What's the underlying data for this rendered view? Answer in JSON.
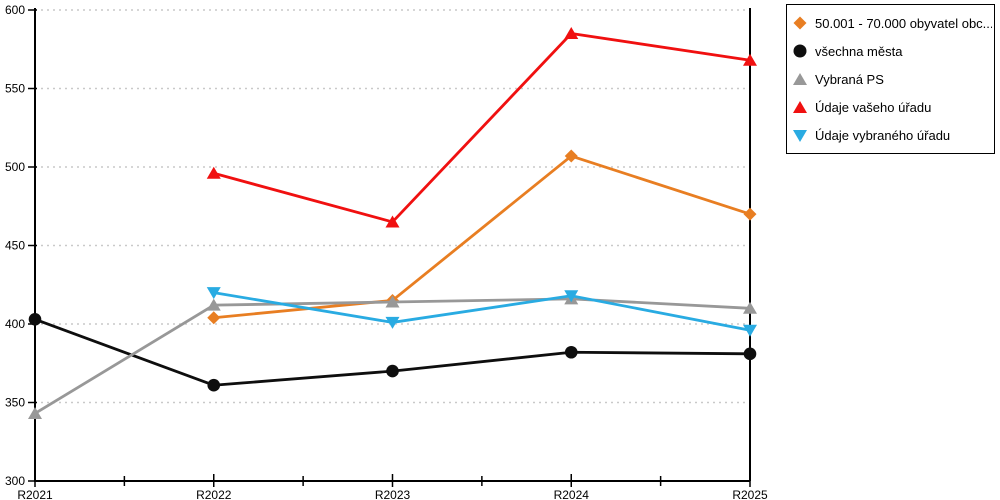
{
  "chart_data": {
    "type": "line",
    "categories": [
      "R2021",
      "R2022",
      "R2023",
      "R2024",
      "R2025"
    ],
    "series": [
      {
        "name": "50.001 - 70.000 obyvatel obc...",
        "marker": "diamond",
        "color": "#E87E22",
        "values": [
          null,
          404,
          415,
          507,
          470
        ]
      },
      {
        "name": "všechna města",
        "marker": "circle",
        "color": "#0E0E0E",
        "values": [
          403,
          361,
          370,
          382,
          381
        ]
      },
      {
        "name": "Vybraná PS",
        "marker": "triangle-up",
        "color": "#989898",
        "values": [
          343,
          412,
          414,
          416,
          410
        ]
      },
      {
        "name": "Údaje vašeho úřadu",
        "marker": "triangle-up",
        "color": "#F01010",
        "values": [
          null,
          496,
          465,
          585,
          568
        ]
      },
      {
        "name": "Údaje vybraného úřadu",
        "marker": "triangle-down",
        "color": "#29ABE2",
        "values": [
          null,
          420,
          401,
          418,
          396
        ]
      }
    ],
    "title": "",
    "xlabel": "",
    "ylabel": "",
    "ylim": [
      300,
      600
    ],
    "ytick_step": 50,
    "grid": "horizontal-dotted",
    "gridline_color": "#C9C9C9",
    "axis_color": "#000000",
    "legend_position": "top-right"
  },
  "axes": {
    "y_ticks": [
      "300",
      "350",
      "400",
      "450",
      "500",
      "550",
      "600"
    ],
    "x_ticks": [
      "R2021",
      "R2022",
      "R2023",
      "R2024",
      "R2025"
    ]
  }
}
